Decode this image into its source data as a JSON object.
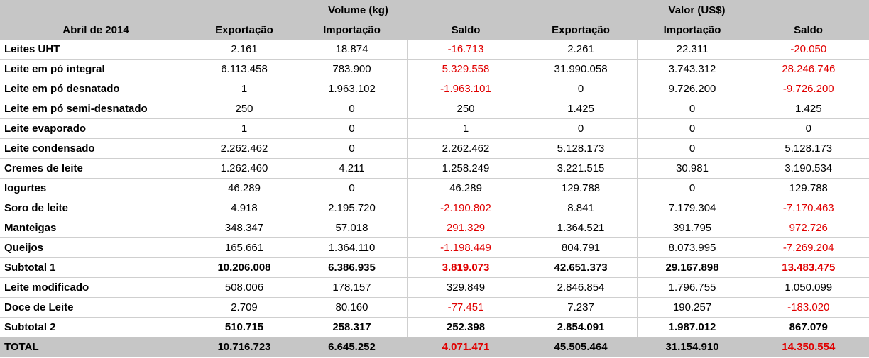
{
  "header": {
    "corner_label": "Abril de 2014",
    "group_volume": "Volume (kg)",
    "group_valor": "Valor (US$)",
    "columns": [
      "Exportação",
      "Importação",
      "Saldo",
      "Exportação",
      "Importação",
      "Saldo"
    ]
  },
  "rows": [
    {
      "label": "Leites UHT",
      "type": "normal",
      "cells": [
        "2.161",
        "18.874",
        "-16.713",
        "2.261",
        "22.311",
        "-20.050"
      ]
    },
    {
      "label": "Leite em pó integral",
      "type": "normal",
      "cells": [
        "6.113.458",
        "783.900",
        "5.329.558",
        "31.990.058",
        "3.743.312",
        "28.246.746"
      ]
    },
    {
      "label": "Leite em pó desnatado",
      "type": "normal",
      "cells": [
        "1",
        "1.963.102",
        "-1.963.101",
        "0",
        "9.726.200",
        "-9.726.200"
      ]
    },
    {
      "label": "Leite em pó semi-desnatado",
      "type": "normal",
      "cells": [
        "250",
        "0",
        "250",
        "1.425",
        "0",
        "1.425"
      ]
    },
    {
      "label": "Leite evaporado",
      "type": "normal",
      "cells": [
        "1",
        "0",
        "1",
        "0",
        "0",
        "0"
      ]
    },
    {
      "label": "Leite condensado",
      "type": "normal",
      "cells": [
        "2.262.462",
        "0",
        "2.262.462",
        "5.128.173",
        "0",
        "5.128.173"
      ]
    },
    {
      "label": "Cremes de leite",
      "type": "normal",
      "cells": [
        "1.262.460",
        "4.211",
        "1.258.249",
        "3.221.515",
        "30.981",
        "3.190.534"
      ]
    },
    {
      "label": "Iogurtes",
      "type": "normal",
      "cells": [
        "46.289",
        "0",
        "46.289",
        "129.788",
        "0",
        "129.788"
      ]
    },
    {
      "label": "Soro de leite",
      "type": "normal",
      "cells": [
        "4.918",
        "2.195.720",
        "-2.190.802",
        "8.841",
        "7.179.304",
        "-7.170.463"
      ]
    },
    {
      "label": "Manteigas",
      "type": "normal",
      "cells": [
        "348.347",
        "57.018",
        "291.329",
        "1.364.521",
        "391.795",
        "972.726"
      ]
    },
    {
      "label": "Queijos",
      "type": "normal",
      "cells": [
        "165.661",
        "1.364.110",
        "-1.198.449",
        "804.791",
        "8.073.995",
        "-7.269.204"
      ]
    },
    {
      "label": "Subtotal 1",
      "type": "subtotal",
      "cells": [
        "10.206.008",
        "6.386.935",
        "3.819.073",
        "42.651.373",
        "29.167.898",
        "13.483.475"
      ]
    },
    {
      "label": "Leite modificado",
      "type": "normal",
      "cells": [
        "508.006",
        "178.157",
        "329.849",
        "2.846.854",
        "1.796.755",
        "1.050.099"
      ]
    },
    {
      "label": "Doce de Leite",
      "type": "normal",
      "cells": [
        "2.709",
        "80.160",
        "-77.451",
        "7.237",
        "190.257",
        "-183.020"
      ]
    },
    {
      "label": "Subtotal 2",
      "type": "subtotal",
      "cells": [
        "510.715",
        "258.317",
        "252.398",
        "2.854.091",
        "1.987.012",
        "867.079"
      ]
    },
    {
      "label": "TOTAL",
      "type": "total",
      "cells": [
        "10.716.723",
        "6.645.252",
        "4.071.471",
        "45.505.464",
        "31.154.910",
        "14.350.554"
      ]
    }
  ],
  "red_cells": {
    "Leites UHT": [
      2,
      5
    ],
    "Leite em pó integral": [
      2,
      5
    ],
    "Leite em pó desnatado": [
      2,
      5
    ],
    "Soro de leite": [
      2,
      5
    ],
    "Manteigas": [
      2,
      5
    ],
    "Queijos": [
      2,
      5
    ],
    "Subtotal 1": [
      2,
      5
    ],
    "Doce de Leite": [
      2,
      5
    ],
    "TOTAL": [
      2,
      5
    ]
  }
}
